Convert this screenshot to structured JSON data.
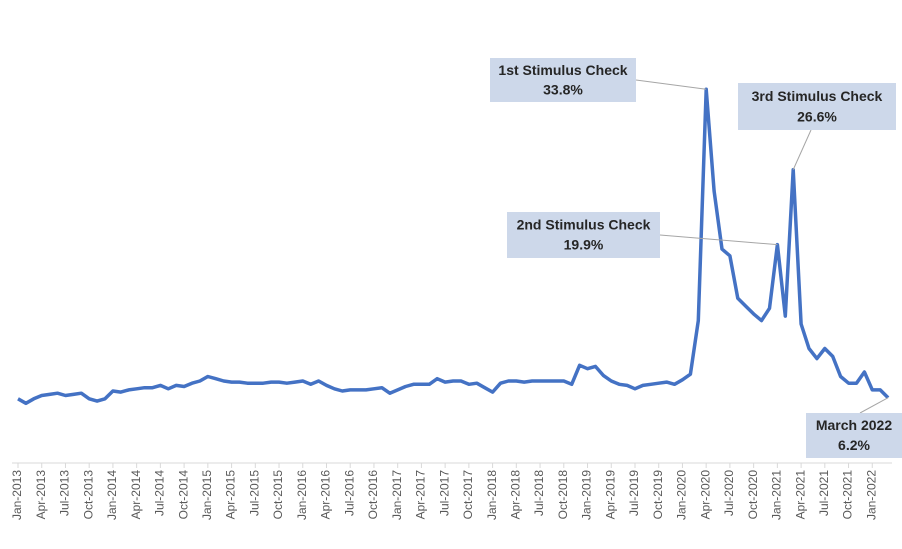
{
  "chart_data": {
    "type": "line",
    "color": "#4472c4",
    "ylim": [
      0,
      40
    ],
    "categories": [
      "Jan-2013",
      null,
      null,
      "Apr-2013",
      null,
      null,
      "Jul-2013",
      null,
      null,
      "Oct-2013",
      null,
      null,
      "Jan-2014",
      null,
      null,
      "Apr-2014",
      null,
      null,
      "Jul-2014",
      null,
      null,
      "Oct-2014",
      null,
      null,
      "Jan-2015",
      null,
      null,
      "Apr-2015",
      null,
      null,
      "Jul-2015",
      null,
      null,
      "Oct-2015",
      null,
      null,
      "Jan-2016",
      null,
      null,
      "Apr-2016",
      null,
      null,
      "Jul-2016",
      null,
      null,
      "Oct-2016",
      null,
      null,
      "Jan-2017",
      null,
      null,
      "Apr-2017",
      null,
      null,
      "Jul-2017",
      null,
      null,
      "Oct-2017",
      null,
      null,
      "Jan-2018",
      null,
      null,
      "Apr-2018",
      null,
      null,
      "Jul-2018",
      null,
      null,
      "Oct-2018",
      null,
      null,
      "Jan-2019",
      null,
      null,
      "Apr-2019",
      null,
      null,
      "Jul-2019",
      null,
      null,
      "Oct-2019",
      null,
      null,
      "Jan-2020",
      null,
      null,
      "Apr-2020",
      null,
      null,
      "Jul-2020",
      null,
      null,
      "Oct-2020",
      null,
      null,
      "Jan-2021",
      null,
      null,
      "Apr-2021",
      null,
      null,
      "Jul-2021",
      null,
      null,
      "Oct-2021",
      null,
      null,
      "Jan-2022",
      null,
      null
    ],
    "values": [
      6.1,
      5.7,
      6.1,
      6.4,
      6.5,
      6.6,
      6.4,
      6.5,
      6.6,
      6.1,
      5.9,
      6.1,
      6.8,
      6.7,
      6.9,
      7.0,
      7.1,
      7.1,
      7.3,
      7.0,
      7.3,
      7.2,
      7.5,
      7.7,
      8.1,
      7.9,
      7.7,
      7.6,
      7.6,
      7.5,
      7.5,
      7.5,
      7.6,
      7.6,
      7.5,
      7.6,
      7.7,
      7.4,
      7.7,
      7.3,
      7.0,
      6.8,
      6.9,
      6.9,
      6.9,
      7.0,
      7.1,
      6.6,
      6.9,
      7.2,
      7.4,
      7.4,
      7.4,
      7.9,
      7.6,
      7.7,
      7.7,
      7.4,
      7.5,
      7.1,
      6.7,
      7.5,
      7.7,
      7.7,
      7.6,
      7.7,
      7.7,
      7.7,
      7.7,
      7.7,
      7.4,
      9.1,
      8.8,
      9.0,
      8.2,
      7.7,
      7.4,
      7.3,
      7.0,
      7.3,
      7.4,
      7.5,
      7.6,
      7.4,
      7.8,
      8.3,
      13.1,
      33.8,
      24.7,
      19.5,
      18.9,
      15.1,
      14.4,
      13.7,
      13.1,
      14.2,
      19.9,
      13.5,
      26.6,
      12.8,
      10.6,
      9.7,
      10.6,
      9.9,
      8.1,
      7.5,
      7.5,
      8.5,
      6.9,
      6.9,
      6.2
    ],
    "value_labels": [
      null,
      null,
      null,
      null,
      null,
      null,
      null,
      null,
      null,
      null,
      null,
      null,
      null,
      null,
      null,
      null,
      null,
      null,
      null,
      null,
      null,
      null,
      null,
      null,
      null,
      null,
      null,
      null,
      null,
      null,
      null,
      null,
      null,
      null,
      null,
      null,
      null,
      null,
      null,
      null,
      null,
      null,
      null,
      null,
      null,
      null,
      null,
      null,
      null,
      null,
      null,
      null,
      null,
      null,
      null,
      null,
      null,
      null,
      null,
      null,
      null,
      null,
      null,
      null,
      null,
      null,
      null,
      null,
      null,
      null,
      null,
      null,
      null,
      null,
      null,
      null,
      null,
      null,
      null,
      null,
      null,
      null,
      null,
      null,
      null,
      null,
      null,
      "33.8%",
      null,
      null,
      null,
      null,
      null,
      null,
      null,
      null,
      "19.9%",
      null,
      "26.6%",
      null,
      null,
      null,
      null,
      null,
      null,
      null,
      null,
      null,
      null,
      null,
      "6.2%"
    ],
    "annotations": [
      null,
      null,
      null,
      null,
      null,
      null,
      null,
      null,
      null,
      null,
      null,
      null,
      null,
      null,
      null,
      null,
      null,
      null,
      null,
      null,
      null,
      null,
      null,
      null,
      null,
      null,
      null,
      null,
      null,
      null,
      null,
      null,
      null,
      null,
      null,
      null,
      null,
      null,
      null,
      null,
      null,
      null,
      null,
      null,
      null,
      null,
      null,
      null,
      null,
      null,
      null,
      null,
      null,
      null,
      null,
      null,
      null,
      null,
      null,
      null,
      null,
      null,
      null,
      null,
      null,
      null,
      null,
      null,
      null,
      null,
      null,
      null,
      null,
      null,
      null,
      null,
      null,
      null,
      null,
      null,
      null,
      null,
      null,
      null,
      null,
      null,
      null,
      "1st Stimulus Check",
      null,
      null,
      null,
      null,
      null,
      null,
      null,
      null,
      "2nd Stimulus Check",
      null,
      "3rd Stimulus Check",
      null,
      null,
      null,
      null,
      null,
      null,
      null,
      null,
      null,
      null,
      null,
      "March 2022"
    ]
  }
}
